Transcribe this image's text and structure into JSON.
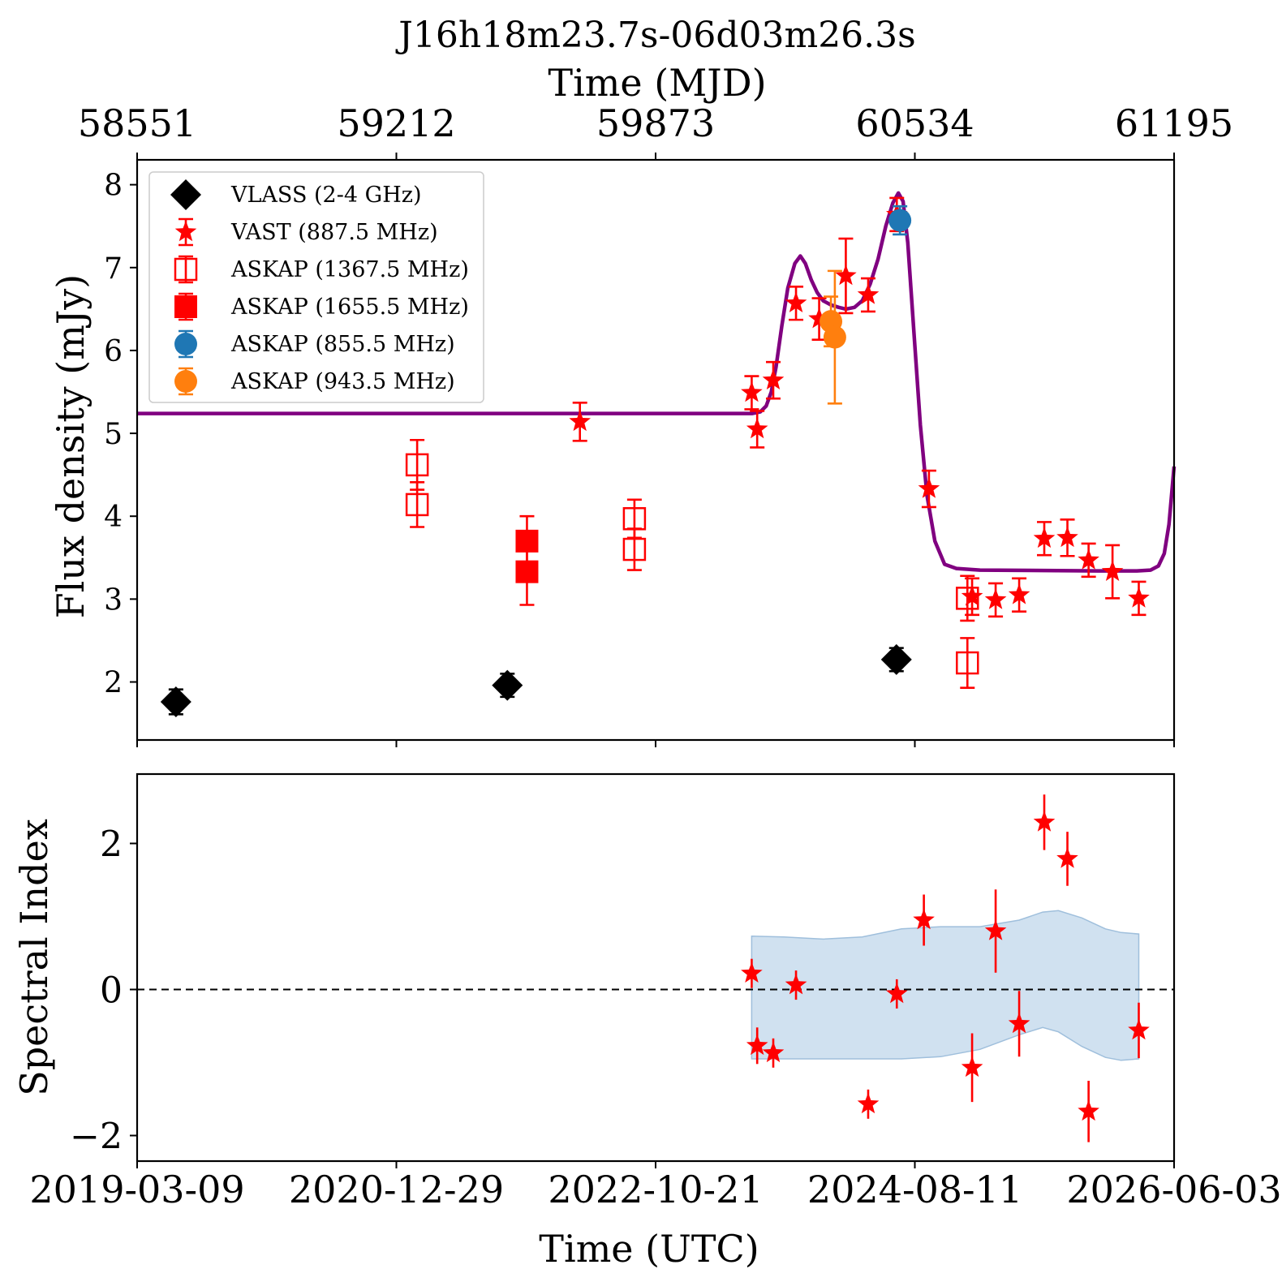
{
  "figure": {
    "title": "J16h18m23.7s-06d03m26.3s"
  },
  "top_axis": {
    "label": "Time (MJD)",
    "ticks": [
      "58551",
      "59212",
      "59873",
      "60534",
      "61195"
    ]
  },
  "bottom_axis": {
    "label": "Time (UTC)",
    "ticks": [
      "2019-03-09",
      "2020-12-29",
      "2022-10-21",
      "2024-08-11",
      "2026-06-03"
    ]
  },
  "colors": {
    "vlass": "#000000",
    "vast": "#ff0000",
    "askap_1367": "#ff0000",
    "askap_1655": "#ff0000",
    "askap_855": "#1f77b4",
    "askap_943": "#ff7f0e",
    "model": "#800080",
    "band": "#bcd4e9"
  },
  "chart_data": [
    {
      "type": "scatter",
      "panel": "flux",
      "x_unit": "MJD",
      "xlim": [
        58551,
        61195
      ],
      "ylabel": "Flux density (mJy)",
      "ylim": [
        1.3,
        8.3
      ],
      "yticks": [
        2,
        3,
        4,
        5,
        6,
        7,
        8
      ],
      "legend_position": "upper left",
      "series": [
        {
          "name": "VLASS (2-4 GHz)",
          "key": "vlass",
          "marker": "diamond",
          "points": [
            {
              "x": 58650,
              "y": 1.76,
              "err": 0.15
            },
            {
              "x": 59495,
              "y": 1.96,
              "err": 0.14
            },
            {
              "x": 60487,
              "y": 2.27,
              "err": 0.14
            }
          ]
        },
        {
          "name": "VAST (887.5 MHz)",
          "key": "vast",
          "marker": "star",
          "points": [
            {
              "x": 59680,
              "y": 5.14,
              "err": 0.23
            },
            {
              "x": 60118,
              "y": 5.49,
              "err": 0.2
            },
            {
              "x": 60132,
              "y": 5.05,
              "err": 0.22
            },
            {
              "x": 60173,
              "y": 5.64,
              "err": 0.22
            },
            {
              "x": 60231,
              "y": 6.57,
              "err": 0.2
            },
            {
              "x": 60290,
              "y": 6.38,
              "err": 0.25
            },
            {
              "x": 60358,
              "y": 6.9,
              "err": 0.45
            },
            {
              "x": 60415,
              "y": 6.67,
              "err": 0.2
            },
            {
              "x": 60488,
              "y": 7.64,
              "err": 0.2
            },
            {
              "x": 60570,
              "y": 4.33,
              "err": 0.22
            },
            {
              "x": 60680,
              "y": 3.03,
              "err": 0.22
            },
            {
              "x": 60740,
              "y": 2.99,
              "err": 0.2
            },
            {
              "x": 60800,
              "y": 3.05,
              "err": 0.2
            },
            {
              "x": 60864,
              "y": 3.73,
              "err": 0.2
            },
            {
              "x": 60923,
              "y": 3.74,
              "err": 0.22
            },
            {
              "x": 60977,
              "y": 3.47,
              "err": 0.2
            },
            {
              "x": 61038,
              "y": 3.33,
              "err": 0.32
            },
            {
              "x": 61105,
              "y": 3.01,
              "err": 0.2
            }
          ]
        },
        {
          "name": "ASKAP (1367.5 MHz)",
          "key": "askap_1367",
          "marker": "square-open",
          "points": [
            {
              "x": 59265,
              "y": 4.62,
              "err": 0.3
            },
            {
              "x": 59265,
              "y": 4.14,
              "err": 0.27
            },
            {
              "x": 59819,
              "y": 3.97,
              "err": 0.23
            },
            {
              "x": 59819,
              "y": 3.6,
              "err": 0.25
            },
            {
              "x": 60668,
              "y": 3.01,
              "err": 0.27
            },
            {
              "x": 60668,
              "y": 2.23,
              "err": 0.3
            }
          ]
        },
        {
          "name": "ASKAP (1655.5 MHz)",
          "key": "askap_1655",
          "marker": "square",
          "points": [
            {
              "x": 59545,
              "y": 3.7,
              "err": 0.3
            },
            {
              "x": 59545,
              "y": 3.33,
              "err": 0.4
            }
          ]
        },
        {
          "name": "ASKAP (855.5 MHz)",
          "key": "askap_855",
          "marker": "circle",
          "points": [
            {
              "x": 60496,
              "y": 7.57,
              "err": 0.17
            }
          ]
        },
        {
          "name": "ASKAP (943.5 MHz)",
          "key": "askap_943",
          "marker": "circle",
          "points": [
            {
              "x": 60320,
              "y": 6.35,
              "err": 0.3
            },
            {
              "x": 60330,
              "y": 6.16,
              "err": 0.8
            }
          ]
        }
      ],
      "model_curve": {
        "key": "model",
        "points": [
          [
            58551,
            5.24
          ],
          [
            60120,
            5.24
          ],
          [
            60140,
            5.26
          ],
          [
            60155,
            5.33
          ],
          [
            60168,
            5.5
          ],
          [
            60180,
            5.8
          ],
          [
            60195,
            6.3
          ],
          [
            60210,
            6.75
          ],
          [
            60228,
            7.05
          ],
          [
            60242,
            7.14
          ],
          [
            60255,
            7.05
          ],
          [
            60270,
            6.85
          ],
          [
            60285,
            6.7
          ],
          [
            60300,
            6.6
          ],
          [
            60320,
            6.55
          ],
          [
            60340,
            6.52
          ],
          [
            60358,
            6.5
          ],
          [
            60380,
            6.52
          ],
          [
            60400,
            6.6
          ],
          [
            60420,
            6.8
          ],
          [
            60440,
            7.1
          ],
          [
            60460,
            7.5
          ],
          [
            60478,
            7.78
          ],
          [
            60492,
            7.9
          ],
          [
            60504,
            7.8
          ],
          [
            60516,
            7.3
          ],
          [
            60532,
            6.2
          ],
          [
            60548,
            5.1
          ],
          [
            60565,
            4.25
          ],
          [
            60585,
            3.7
          ],
          [
            60610,
            3.42
          ],
          [
            60640,
            3.37
          ],
          [
            60700,
            3.35
          ],
          [
            61000,
            3.34
          ],
          [
            61100,
            3.34
          ],
          [
            61135,
            3.35
          ],
          [
            61155,
            3.4
          ],
          [
            61170,
            3.55
          ],
          [
            61182,
            3.9
          ],
          [
            61195,
            4.6
          ]
        ]
      }
    },
    {
      "type": "scatter",
      "panel": "spectral_index",
      "x_unit": "MJD",
      "xlim": [
        58551,
        61195
      ],
      "ylabel": "Spectral Index",
      "ylim": [
        -2.35,
        2.95
      ],
      "yticks": [
        -2,
        0,
        2
      ],
      "reference_line": 0,
      "series": [
        {
          "key": "vast",
          "marker": "star",
          "points": [
            {
              "x": 60118,
              "y": 0.22,
              "err": 0.2
            },
            {
              "x": 60132,
              "y": -0.77,
              "err": 0.25
            },
            {
              "x": 60173,
              "y": -0.87,
              "err": 0.2
            },
            {
              "x": 60231,
              "y": 0.06,
              "err": 0.2
            },
            {
              "x": 60415,
              "y": -1.57,
              "err": 0.2
            },
            {
              "x": 60488,
              "y": -0.06,
              "err": 0.2
            },
            {
              "x": 60557,
              "y": 0.95,
              "err": 0.35
            },
            {
              "x": 60680,
              "y": -1.07,
              "err": 0.47
            },
            {
              "x": 60740,
              "y": 0.8,
              "err": 0.57
            },
            {
              "x": 60800,
              "y": -0.47,
              "err": 0.45
            },
            {
              "x": 60864,
              "y": 2.29,
              "err": 0.38
            },
            {
              "x": 60923,
              "y": 1.79,
              "err": 0.37
            },
            {
              "x": 60977,
              "y": -1.67,
              "err": 0.42
            },
            {
              "x": 61105,
              "y": -0.56,
              "err": 0.38
            }
          ]
        }
      ],
      "band": {
        "key": "band",
        "x": [
          60118,
          60200,
          60300,
          60400,
          60500,
          60600,
          60700,
          60800,
          60860,
          60900,
          60960,
          61020,
          61060,
          61105
        ],
        "upper": [
          0.73,
          0.72,
          0.69,
          0.72,
          0.83,
          0.86,
          0.86,
          0.95,
          1.06,
          1.08,
          0.98,
          0.83,
          0.78,
          0.76
        ],
        "lower": [
          -0.95,
          -0.95,
          -0.95,
          -0.95,
          -0.95,
          -0.92,
          -0.82,
          -0.62,
          -0.52,
          -0.58,
          -0.78,
          -0.93,
          -0.97,
          -0.95
        ]
      }
    }
  ]
}
